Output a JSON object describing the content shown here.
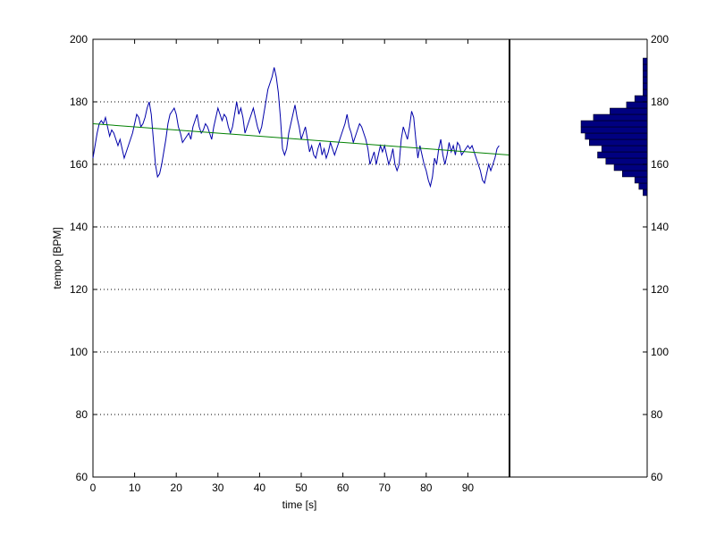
{
  "chart_data": {
    "type": "line",
    "xlabel": "time [s]",
    "ylabel": "tempo [BPM]",
    "xlim": [
      0,
      100
    ],
    "ylim": [
      60,
      200
    ],
    "xticks": [
      0,
      10,
      20,
      30,
      40,
      50,
      60,
      70,
      80,
      90
    ],
    "yticks": [
      60,
      80,
      100,
      120,
      140,
      160,
      180,
      200
    ],
    "grid": "horizontal-dotted",
    "series": [
      {
        "kind": "line",
        "color": "#0000aa",
        "points": [
          [
            0,
            162
          ],
          [
            0.5,
            166
          ],
          [
            1,
            170
          ],
          [
            1.5,
            173
          ],
          [
            2,
            174
          ],
          [
            2.5,
            173
          ],
          [
            3,
            175
          ],
          [
            3.5,
            172
          ],
          [
            4,
            169
          ],
          [
            4.5,
            171
          ],
          [
            5,
            170
          ],
          [
            5.5,
            168
          ],
          [
            6,
            166
          ],
          [
            6.5,
            168
          ],
          [
            7,
            165
          ],
          [
            7.5,
            162
          ],
          [
            8,
            164
          ],
          [
            8.5,
            166
          ],
          [
            9,
            168
          ],
          [
            9.5,
            170
          ],
          [
            10,
            173
          ],
          [
            10.5,
            176
          ],
          [
            11,
            175
          ],
          [
            11.5,
            172
          ],
          [
            12,
            173
          ],
          [
            12.5,
            175
          ],
          [
            13,
            178
          ],
          [
            13.5,
            180
          ],
          [
            14,
            176
          ],
          [
            14.5,
            168
          ],
          [
            15,
            160
          ],
          [
            15.5,
            156
          ],
          [
            16,
            157
          ],
          [
            16.5,
            160
          ],
          [
            17,
            164
          ],
          [
            17.5,
            168
          ],
          [
            18,
            173
          ],
          [
            18.5,
            176
          ],
          [
            19,
            177
          ],
          [
            19.5,
            178
          ],
          [
            20,
            176
          ],
          [
            20.5,
            172
          ],
          [
            21,
            170
          ],
          [
            21.5,
            167
          ],
          [
            22,
            168
          ],
          [
            22.5,
            169
          ],
          [
            23,
            170
          ],
          [
            23.5,
            168
          ],
          [
            24,
            172
          ],
          [
            24.5,
            174
          ],
          [
            25,
            176
          ],
          [
            25.5,
            172
          ],
          [
            26,
            170
          ],
          [
            26.5,
            171
          ],
          [
            27,
            173
          ],
          [
            27.5,
            172
          ],
          [
            28,
            170
          ],
          [
            28.5,
            168
          ],
          [
            29,
            172
          ],
          [
            29.5,
            175
          ],
          [
            30,
            178
          ],
          [
            30.5,
            176
          ],
          [
            31,
            174
          ],
          [
            31.5,
            176
          ],
          [
            32,
            175
          ],
          [
            32.5,
            172
          ],
          [
            33,
            170
          ],
          [
            33.5,
            172
          ],
          [
            34,
            176
          ],
          [
            34.5,
            180
          ],
          [
            35,
            176
          ],
          [
            35.5,
            178
          ],
          [
            36,
            175
          ],
          [
            36.5,
            170
          ],
          [
            37,
            172
          ],
          [
            37.5,
            174
          ],
          [
            38,
            176
          ],
          [
            38.5,
            178
          ],
          [
            39,
            175
          ],
          [
            39.5,
            172
          ],
          [
            40,
            170
          ],
          [
            40.5,
            172
          ],
          [
            41,
            176
          ],
          [
            41.5,
            180
          ],
          [
            42,
            184
          ],
          [
            42.5,
            186
          ],
          [
            43,
            188
          ],
          [
            43.5,
            191
          ],
          [
            44,
            188
          ],
          [
            44.5,
            183
          ],
          [
            45,
            175
          ],
          [
            45.5,
            165
          ],
          [
            46,
            163
          ],
          [
            46.5,
            165
          ],
          [
            47,
            170
          ],
          [
            47.5,
            173
          ],
          [
            48,
            176
          ],
          [
            48.5,
            179
          ],
          [
            49,
            175
          ],
          [
            49.5,
            172
          ],
          [
            50,
            168
          ],
          [
            50.5,
            170
          ],
          [
            51,
            172
          ],
          [
            51.5,
            168
          ],
          [
            52,
            164
          ],
          [
            52.5,
            166
          ],
          [
            53,
            163
          ],
          [
            53.5,
            162
          ],
          [
            54,
            165
          ],
          [
            54.5,
            167
          ],
          [
            55,
            163
          ],
          [
            55.5,
            165
          ],
          [
            56,
            162
          ],
          [
            56.5,
            164
          ],
          [
            57,
            167
          ],
          [
            57.5,
            165
          ],
          [
            58,
            163
          ],
          [
            58.5,
            165
          ],
          [
            59,
            167
          ],
          [
            59.5,
            169
          ],
          [
            60,
            171
          ],
          [
            60.5,
            173
          ],
          [
            61,
            176
          ],
          [
            61.5,
            172
          ],
          [
            62,
            170
          ],
          [
            62.5,
            167
          ],
          [
            63,
            169
          ],
          [
            63.5,
            171
          ],
          [
            64,
            173
          ],
          [
            64.5,
            172
          ],
          [
            65,
            170
          ],
          [
            65.5,
            168
          ],
          [
            66,
            165
          ],
          [
            66.5,
            160
          ],
          [
            67,
            162
          ],
          [
            67.5,
            164
          ],
          [
            68,
            160
          ],
          [
            68.5,
            163
          ],
          [
            69,
            166
          ],
          [
            69.5,
            164
          ],
          [
            70,
            166
          ],
          [
            70.5,
            163
          ],
          [
            71,
            160
          ],
          [
            71.5,
            162
          ],
          [
            72,
            165
          ],
          [
            72.5,
            160
          ],
          [
            73,
            158
          ],
          [
            73.5,
            160
          ],
          [
            74,
            168
          ],
          [
            74.5,
            172
          ],
          [
            75,
            170
          ],
          [
            75.5,
            168
          ],
          [
            76,
            172
          ],
          [
            76.5,
            177
          ],
          [
            77,
            175
          ],
          [
            77.5,
            168
          ],
          [
            78,
            162
          ],
          [
            78.5,
            166
          ],
          [
            79,
            163
          ],
          [
            79.5,
            160
          ],
          [
            80,
            158
          ],
          [
            80.5,
            155
          ],
          [
            81,
            153
          ],
          [
            81.5,
            156
          ],
          [
            82,
            162
          ],
          [
            82.5,
            160
          ],
          [
            83,
            165
          ],
          [
            83.5,
            168
          ],
          [
            84,
            163
          ],
          [
            84.5,
            160
          ],
          [
            85,
            163
          ],
          [
            85.5,
            167
          ],
          [
            86,
            164
          ],
          [
            86.5,
            166
          ],
          [
            87,
            163
          ],
          [
            87.5,
            167
          ],
          [
            88,
            166
          ],
          [
            88.5,
            163
          ],
          [
            89,
            164
          ],
          [
            89.5,
            165
          ],
          [
            90,
            166
          ],
          [
            90.5,
            165
          ],
          [
            91,
            166
          ],
          [
            91.5,
            164
          ],
          [
            92,
            162
          ],
          [
            92.5,
            160
          ],
          [
            93,
            158
          ],
          [
            93.5,
            155
          ],
          [
            94,
            154
          ],
          [
            94.5,
            157
          ],
          [
            95,
            160
          ],
          [
            95.5,
            158
          ],
          [
            96,
            160
          ],
          [
            96.5,
            162
          ],
          [
            97,
            165
          ],
          [
            97.5,
            166
          ]
        ]
      },
      {
        "kind": "trend",
        "color": "#008000",
        "points": [
          [
            0,
            173
          ],
          [
            100,
            163
          ]
        ]
      }
    ],
    "right_axis": {
      "ticks": [
        60,
        80,
        100,
        120,
        140,
        160,
        180,
        200
      ]
    },
    "histogram": {
      "color": "#000080",
      "bin_width": 2,
      "bins": [
        {
          "center": 151,
          "count": 1
        },
        {
          "center": 153,
          "count": 2
        },
        {
          "center": 155,
          "count": 3
        },
        {
          "center": 157,
          "count": 6
        },
        {
          "center": 159,
          "count": 8
        },
        {
          "center": 161,
          "count": 10
        },
        {
          "center": 163,
          "count": 12
        },
        {
          "center": 165,
          "count": 11
        },
        {
          "center": 167,
          "count": 14
        },
        {
          "center": 169,
          "count": 15
        },
        {
          "center": 171,
          "count": 16
        },
        {
          "center": 173,
          "count": 16
        },
        {
          "center": 175,
          "count": 13
        },
        {
          "center": 177,
          "count": 9
        },
        {
          "center": 179,
          "count": 5
        },
        {
          "center": 181,
          "count": 3
        },
        {
          "center": 183,
          "count": 1
        },
        {
          "center": 185,
          "count": 1
        },
        {
          "center": 187,
          "count": 1
        },
        {
          "center": 189,
          "count": 1
        },
        {
          "center": 191,
          "count": 1
        },
        {
          "center": 193,
          "count": 1
        }
      ]
    }
  }
}
